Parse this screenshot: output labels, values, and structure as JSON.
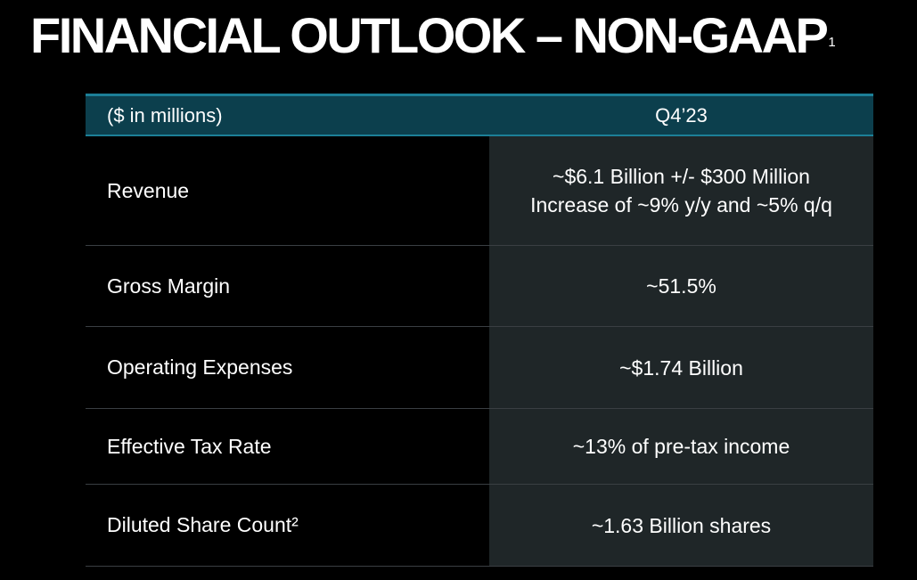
{
  "slide": {
    "title": "FINANCIAL OUTLOOK – NON-GAAP",
    "title_footnote": "1"
  },
  "table": {
    "header": {
      "label": "($ in millions)",
      "period": "Q4’23"
    },
    "rows": [
      {
        "label": "Revenue",
        "value_line1": "~$6.1 Billion +/- $300 Million",
        "value_line2": "Increase of ~9% y/y and ~5% q/q"
      },
      {
        "label": "Gross Margin",
        "value": "~51.5%"
      },
      {
        "label": "Operating Expenses",
        "value": "~$1.74 Billion"
      },
      {
        "label": "Effective Tax Rate",
        "value": "~13% of pre-tax income"
      },
      {
        "label": "Diluted Share Count²",
        "value": "~1.63 Billion shares"
      }
    ]
  },
  "colors": {
    "background": "#000000",
    "header_fill": "#0c3f4d",
    "header_rule": "#1c7f97",
    "value_cell_fill": "#1f2628",
    "row_divider": "#3a3f43",
    "text": "#ffffff"
  }
}
